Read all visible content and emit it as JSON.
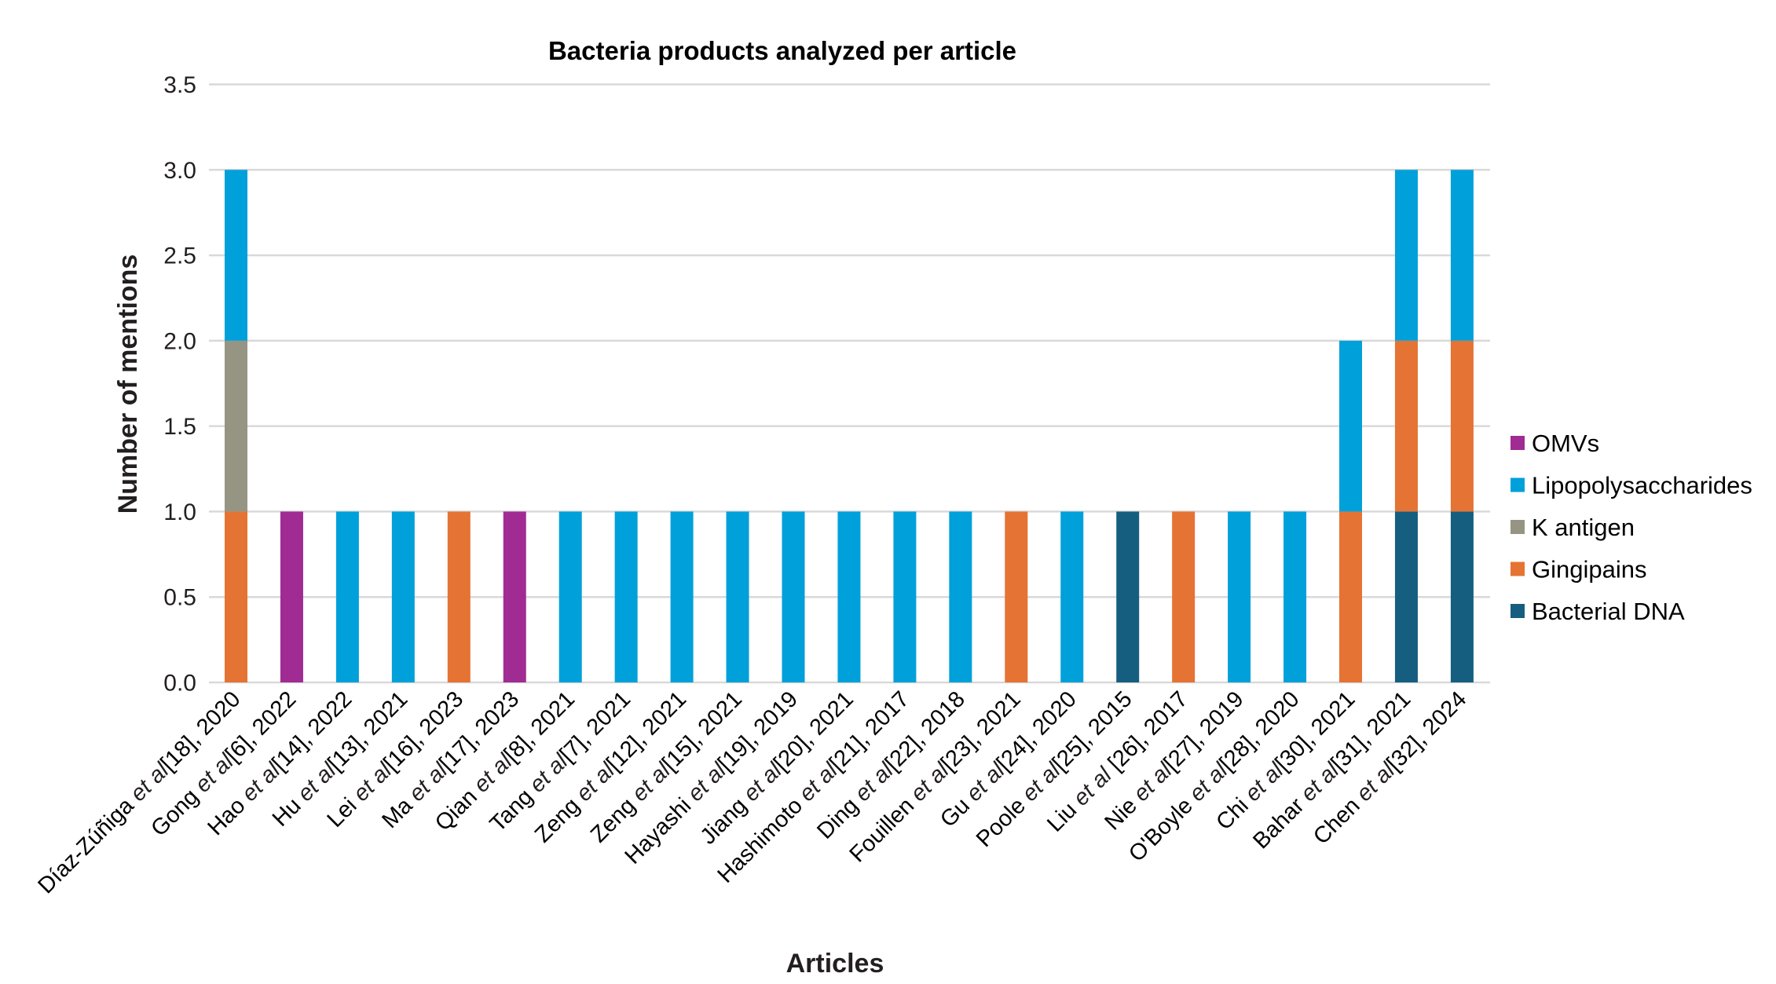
{
  "chart_data": {
    "type": "bar",
    "stacked": true,
    "title": "Bacteria products analyzed per article",
    "xlabel": "Articles",
    "ylabel": "Number of mentions",
    "ylim": [
      0,
      3.5
    ],
    "yticks": [
      "0.0",
      "0.5",
      "1.0",
      "1.5",
      "2.0",
      "2.5",
      "3.0",
      "3.5"
    ],
    "ytick_values": [
      0,
      0.5,
      1,
      1.5,
      2,
      2.5,
      3,
      3.5
    ],
    "grid": true,
    "legend_position": "right",
    "categories": [
      {
        "pre": "Díaz-Zúñiga ",
        "ital": "et al",
        "post": "[18], 2020"
      },
      {
        "pre": "Gong ",
        "ital": "et al",
        "post": "[6], 2022"
      },
      {
        "pre": "Hao ",
        "ital": "et al",
        "post": "[14], 2022"
      },
      {
        "pre": "Hu ",
        "ital": "et al",
        "post": "[13], 2021"
      },
      {
        "pre": "Lei ",
        "ital": "et al",
        "post": "[16], 2023"
      },
      {
        "pre": "Ma ",
        "ital": "et al",
        "post": "[17], 2023"
      },
      {
        "pre": "Qian ",
        "ital": "et al",
        "post": "[8], 2021"
      },
      {
        "pre": "Tang ",
        "ital": "et al",
        "post": "[7], 2021"
      },
      {
        "pre": "Zeng ",
        "ital": "et al",
        "post": "[12], 2021"
      },
      {
        "pre": "Zeng ",
        "ital": "et al",
        "post": "[15], 2021"
      },
      {
        "pre": "Hayashi ",
        "ital": "et al",
        "post": "[19], 2019"
      },
      {
        "pre": "Jiang ",
        "ital": "et al",
        "post": "[20], 2021"
      },
      {
        "pre": "Hashimoto ",
        "ital": "et al",
        "post": "[21], 2017"
      },
      {
        "pre": "Ding ",
        "ital": "et al",
        "post": "[22], 2018"
      },
      {
        "pre": "Fouillen ",
        "ital": "et al",
        "post": "[23], 2021"
      },
      {
        "pre": "Gu ",
        "ital": "et al",
        "post": "[24], 2020"
      },
      {
        "pre": "Poole ",
        "ital": "et al",
        "post": "[25], 2015"
      },
      {
        "pre": "Liu ",
        "ital": "et al",
        "post": " [26], 2017"
      },
      {
        "pre": "Nie ",
        "ital": "et al",
        "post": "[27], 2019"
      },
      {
        "pre": "O'Boyle ",
        "ital": "et al",
        "post": "[28], 2020"
      },
      {
        "pre": "Chi ",
        "ital": "et al",
        "post": "[30], 2021"
      },
      {
        "pre": "Bahar ",
        "ital": "et al",
        "post": "[31], 2021"
      },
      {
        "pre": "Chen ",
        "ital": "et al",
        "post": "[32], 2024"
      }
    ],
    "series": [
      {
        "name": "Bacterial DNA",
        "color": "#165e80",
        "values": [
          0,
          0,
          0,
          0,
          0,
          0,
          0,
          0,
          0,
          0,
          0,
          0,
          0,
          0,
          0,
          0,
          1,
          0,
          0,
          0,
          0,
          1,
          1
        ]
      },
      {
        "name": "Gingipains",
        "color": "#e57333",
        "values": [
          1,
          0,
          0,
          0,
          1,
          0,
          0,
          0,
          0,
          0,
          0,
          0,
          0,
          0,
          1,
          0,
          0,
          1,
          0,
          0,
          1,
          1,
          1
        ]
      },
      {
        "name": "K antigen",
        "color": "#969483",
        "values": [
          1,
          0,
          0,
          0,
          0,
          0,
          0,
          0,
          0,
          0,
          0,
          0,
          0,
          0,
          0,
          0,
          0,
          0,
          0,
          0,
          0,
          0,
          0
        ]
      },
      {
        "name": "Lipopolysaccharides",
        "color": "#00a0da",
        "values": [
          1,
          0,
          1,
          1,
          0,
          0,
          1,
          1,
          1,
          1,
          1,
          1,
          1,
          1,
          0,
          1,
          0,
          0,
          1,
          1,
          1,
          1,
          1
        ]
      },
      {
        "name": "OMVs",
        "color": "#a02b93",
        "values": [
          0,
          1,
          0,
          0,
          0,
          1,
          0,
          0,
          0,
          0,
          0,
          0,
          0,
          0,
          0,
          0,
          0,
          0,
          0,
          0,
          0,
          0,
          0
        ]
      }
    ],
    "legend_order": [
      "OMVs",
      "Lipopolysaccharides",
      "K antigen",
      "Gingipains",
      "Bacterial DNA"
    ]
  }
}
